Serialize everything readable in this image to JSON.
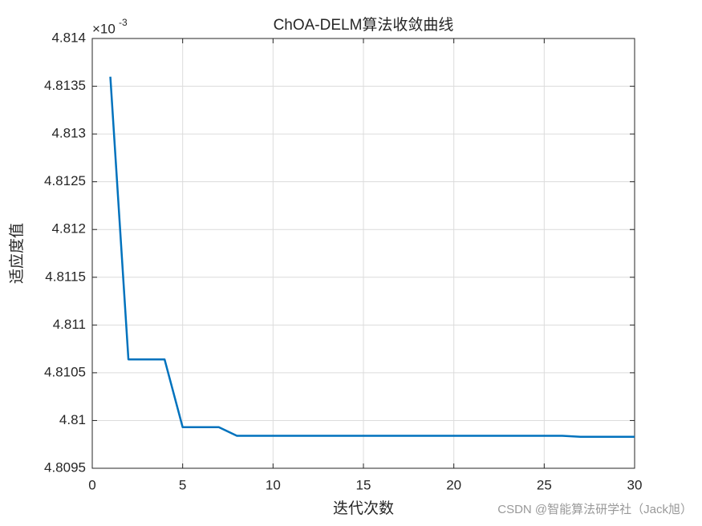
{
  "chart_data": {
    "type": "line",
    "title": "ChOA-DELM算法收敛曲线",
    "x_label": "迭代次数",
    "y_label": "适应度值",
    "y_multiplier": "×10",
    "y_multiplier_exponent": "-3",
    "watermark": "CSDN @智能算法研学社（Jack旭）",
    "x": [
      1,
      2,
      3,
      4,
      5,
      6,
      7,
      8,
      9,
      10,
      11,
      12,
      13,
      14,
      15,
      16,
      17,
      18,
      19,
      20,
      21,
      22,
      23,
      24,
      25,
      26,
      27,
      28,
      29,
      30
    ],
    "values": [
      4.8136,
      4.81064,
      4.81064,
      4.81064,
      4.80993,
      4.80993,
      4.80993,
      4.80984,
      4.80984,
      4.80984,
      4.80984,
      4.80984,
      4.80984,
      4.80984,
      4.80984,
      4.80984,
      4.80984,
      4.80984,
      4.80984,
      4.80984,
      4.80984,
      4.80984,
      4.80984,
      4.80984,
      4.80984,
      4.80984,
      4.80983,
      4.80983,
      4.80983,
      4.80983
    ],
    "color": "#0072bd",
    "xlim": [
      0,
      30
    ],
    "xticks": [
      0,
      5,
      10,
      15,
      20,
      25,
      30
    ],
    "ylim": [
      4.8095,
      4.814
    ],
    "yticks": [
      4.8095,
      4.81,
      4.8105,
      4.811,
      4.8115,
      4.812,
      4.8125,
      4.813,
      4.8135,
      4.814
    ],
    "grid": true
  }
}
